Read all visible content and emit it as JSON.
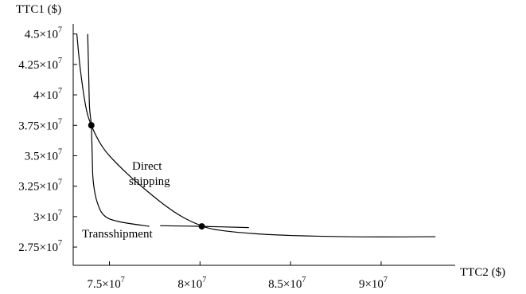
{
  "chart_data": {
    "type": "line",
    "xlabel": "TTC2 ($)",
    "ylabel": "TTC1 ($)",
    "xlim": [
      73000000,
      94000000
    ],
    "ylim": [
      26000000,
      45500000
    ],
    "x_ticks": [
      {
        "value": 75000000,
        "mantissa": "7.5",
        "text": "7.5×10",
        "exp": "7"
      },
      {
        "value": 80000000,
        "mantissa": "8",
        "text": "8×10",
        "exp": "7"
      },
      {
        "value": 85000000,
        "mantissa": "8.5",
        "text": "8.5×10",
        "exp": "7"
      },
      {
        "value": 90000000,
        "mantissa": "9",
        "text": "9×10",
        "exp": "7"
      }
    ],
    "y_ticks": [
      {
        "value": 27500000,
        "text": "2.75×10",
        "exp": "7"
      },
      {
        "value": 30000000,
        "text": "3×10",
        "exp": "7"
      },
      {
        "value": 32500000,
        "text": "3.25×10",
        "exp": "7"
      },
      {
        "value": 35000000,
        "text": "3.5×10",
        "exp": "7"
      },
      {
        "value": 37500000,
        "text": "3.75×10",
        "exp": "7"
      },
      {
        "value": 40000000,
        "text": "4×10",
        "exp": "7"
      },
      {
        "value": 42500000,
        "text": "4.25×10",
        "exp": "7"
      },
      {
        "value": 45000000,
        "text": "4.5×10",
        "exp": "7"
      }
    ],
    "series": [
      {
        "name": "Direct shipping",
        "points": [
          [
            73200000,
            45000000
          ],
          [
            73400000,
            42000000
          ],
          [
            73700000,
            39000000
          ],
          [
            74000000,
            37500000
          ],
          [
            74500000,
            36000000
          ],
          [
            75000000,
            35000000
          ],
          [
            76000000,
            33500000
          ],
          [
            77000000,
            32200000
          ],
          [
            78000000,
            31000000
          ],
          [
            79000000,
            30000000
          ],
          [
            80000000,
            29300000
          ],
          [
            81000000,
            28900000
          ],
          [
            83000000,
            28600000
          ],
          [
            85000000,
            28450000
          ],
          [
            88000000,
            28350000
          ],
          [
            90000000,
            28330000
          ],
          [
            93000000,
            28350000
          ]
        ]
      },
      {
        "name": "Transshipment",
        "points": [
          [
            73800000,
            45000000
          ],
          [
            73850000,
            42000000
          ],
          [
            73900000,
            39000000
          ],
          [
            74000000,
            37500000
          ],
          [
            74050000,
            35000000
          ],
          [
            74100000,
            33000000
          ],
          [
            74300000,
            31300000
          ],
          [
            74700000,
            30100000
          ],
          [
            75500000,
            29600000
          ],
          [
            77200000,
            29200000
          ]
        ]
      },
      {
        "name": "",
        "points": [
          [
            77800000,
            29250000
          ],
          [
            80100000,
            29200000
          ],
          [
            82700000,
            29100000
          ]
        ]
      }
    ],
    "markers": [
      {
        "x": 74000000,
        "y": 37500000
      },
      {
        "x": 80100000,
        "y": 29200000
      }
    ],
    "annotations": {
      "direct_line1": "Direct",
      "direct_line2": "shipping",
      "transshipment": "Transshipment"
    },
    "grid": false,
    "legend": "none"
  }
}
